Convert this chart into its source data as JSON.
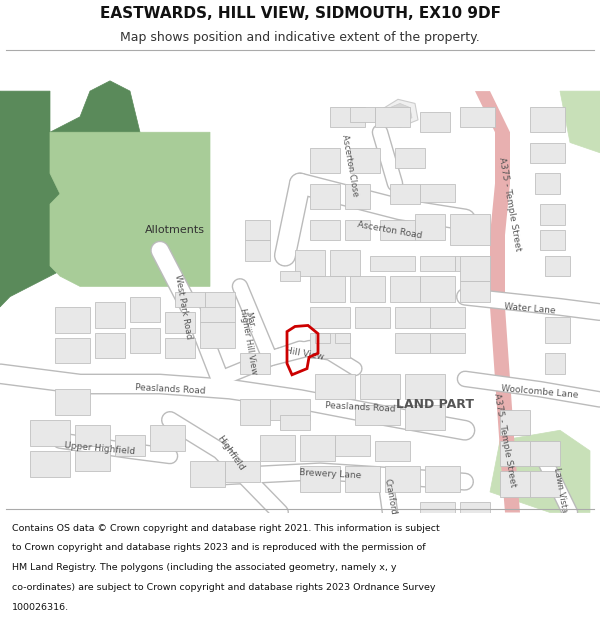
{
  "title": "EASTWARDS, HILL VIEW, SIDMOUTH, EX10 9DF",
  "subtitle": "Map shows position and indicative extent of the property.",
  "footer_lines": [
    "Contains OS data © Crown copyright and database right 2021. This information is subject",
    "to Crown copyright and database rights 2023 and is reproduced with the permission of",
    "HM Land Registry. The polygons (including the associated geometry, namely x, y",
    "co-ordinates) are subject to Crown copyright and database rights 2023 Ordnance Survey",
    "100026316."
  ],
  "bg_color": "#ffffff",
  "map_bg": "#ffffff",
  "building_fill": "#e8e8e8",
  "building_outline": "#c0c0c0",
  "green_dark": "#5a8a5a",
  "green_light": "#a8cc98",
  "green_pale": "#c8e0b8",
  "red_road_fill": "#e8b0b0",
  "plot_color": "#cc0000",
  "road_white": "#ffffff",
  "road_grey": "#bbbbbb"
}
